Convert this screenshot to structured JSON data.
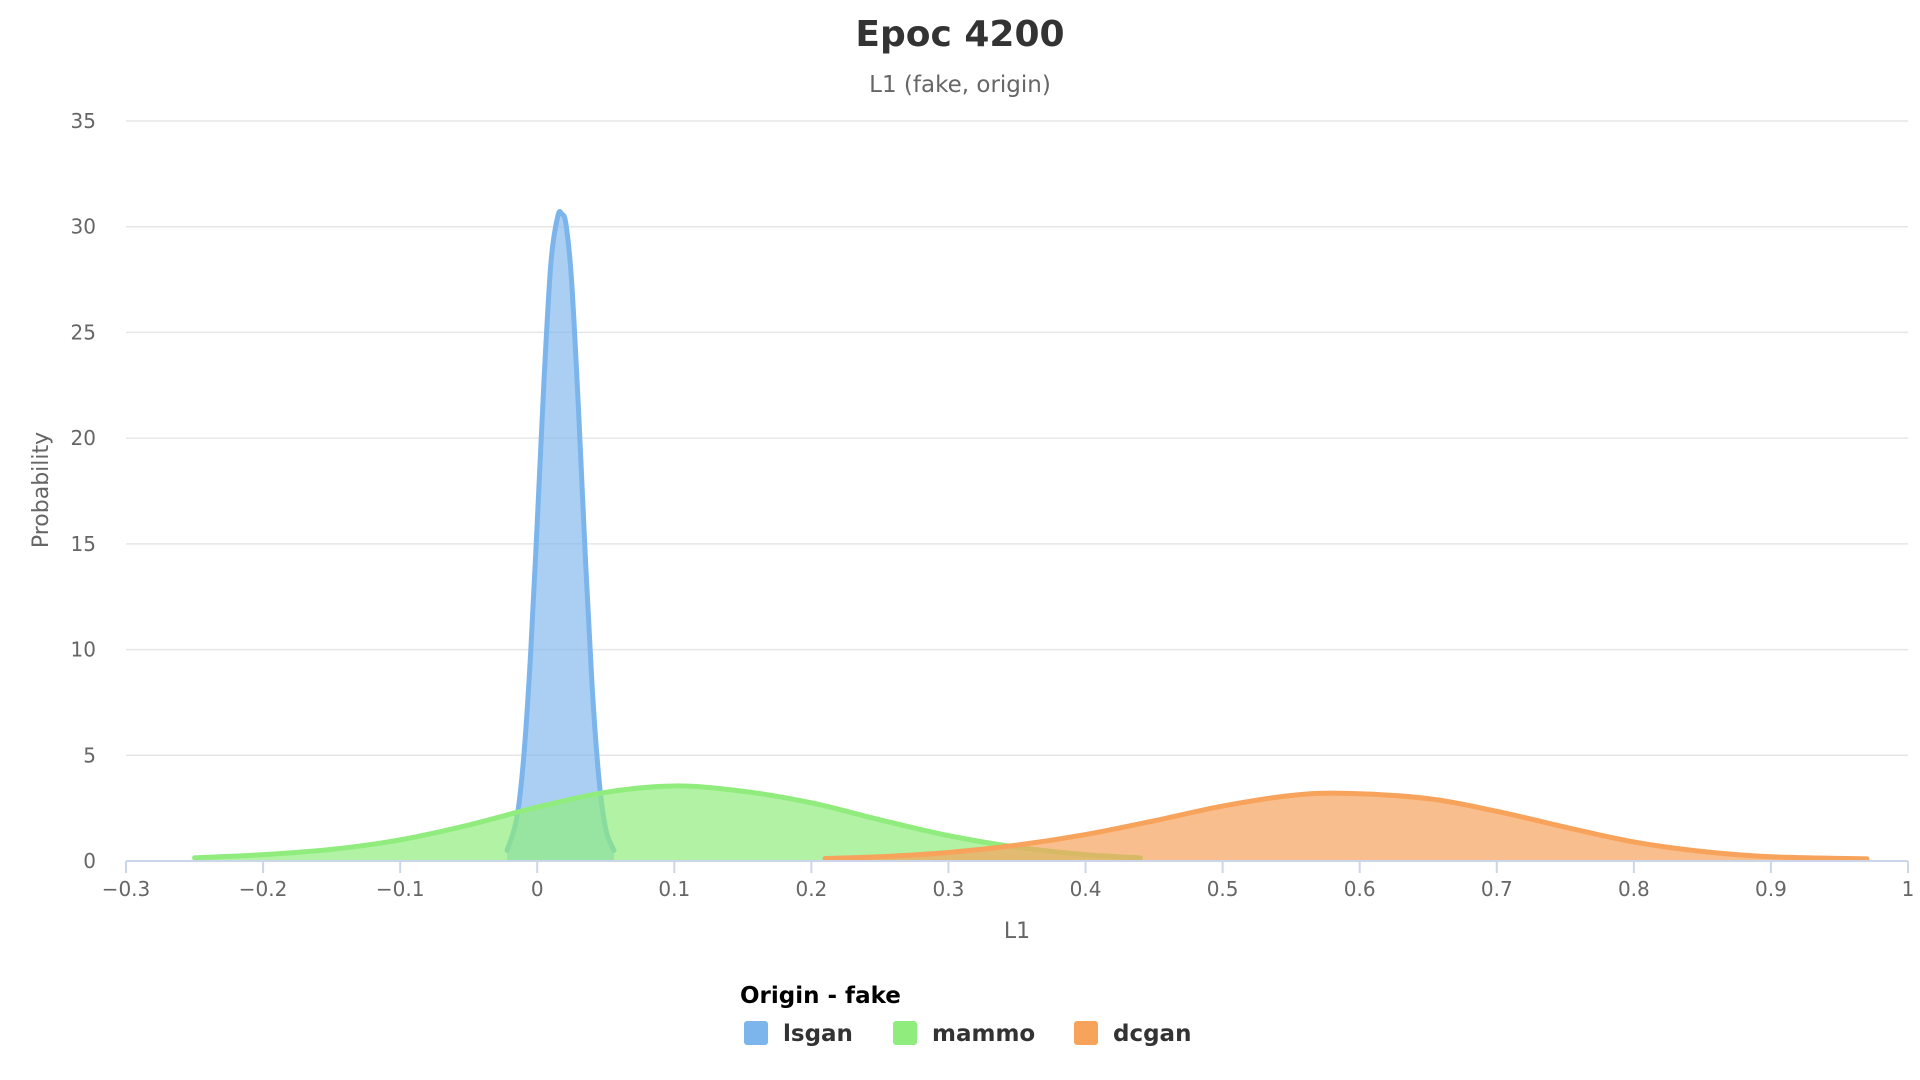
{
  "chart_data": {
    "type": "area",
    "title": "Epoc 4200",
    "subtitle": "L1 (fake, origin)",
    "xlabel": "L1",
    "ylabel": "Probability",
    "xlim": [
      -0.3,
      1
    ],
    "ylim": [
      0,
      35
    ],
    "x_ticks": [
      "−0.3",
      "−0.2",
      "−0.1",
      "0",
      "0.1",
      "0.2",
      "0.3",
      "0.4",
      "0.5",
      "0.6",
      "0.7",
      "0.8",
      "0.9",
      "1"
    ],
    "x_tick_values": [
      -0.3,
      -0.2,
      -0.1,
      0,
      0.1,
      0.2,
      0.3,
      0.4,
      0.5,
      0.6,
      0.7,
      0.8,
      0.9,
      1
    ],
    "y_ticks": [
      "0",
      "5",
      "10",
      "15",
      "20",
      "25",
      "30",
      "35"
    ],
    "y_tick_values": [
      0,
      5,
      10,
      15,
      20,
      25,
      30,
      35
    ],
    "grid": true,
    "legend_position": "bottom-center",
    "legend_title": "Origin - fake",
    "series": [
      {
        "name": "lsgan",
        "color": "#7cb5ec",
        "fill_opacity": 0.65,
        "x": [
          -0.022,
          -0.015,
          -0.01,
          -0.005,
          0.0,
          0.005,
          0.01,
          0.015,
          0.018,
          0.021,
          0.025,
          0.03,
          0.035,
          0.04,
          0.045,
          0.05,
          0.056
        ],
        "y": [
          0.5,
          2.0,
          4.8,
          9.6,
          16.0,
          22.8,
          28.3,
          30.5,
          30.6,
          30.1,
          27.5,
          21.5,
          14.5,
          8.3,
          3.9,
          1.5,
          0.5
        ]
      },
      {
        "name": "mammo",
        "color": "#90ed7d",
        "fill_opacity": 0.7,
        "x": [
          -0.25,
          -0.2,
          -0.15,
          -0.1,
          -0.05,
          0.0,
          0.05,
          0.1,
          0.15,
          0.2,
          0.25,
          0.3,
          0.35,
          0.4,
          0.44
        ],
        "y": [
          0.15,
          0.3,
          0.55,
          1.0,
          1.7,
          2.55,
          3.25,
          3.55,
          3.3,
          2.75,
          1.95,
          1.2,
          0.65,
          0.3,
          0.15
        ]
      },
      {
        "name": "dcgan",
        "color": "#f7a35c",
        "fill_opacity": 0.7,
        "x": [
          0.21,
          0.25,
          0.3,
          0.35,
          0.4,
          0.45,
          0.5,
          0.55,
          0.59,
          0.65,
          0.7,
          0.75,
          0.8,
          0.85,
          0.9,
          0.97
        ],
        "y": [
          0.12,
          0.2,
          0.4,
          0.75,
          1.25,
          1.9,
          2.6,
          3.1,
          3.2,
          2.95,
          2.35,
          1.6,
          0.9,
          0.45,
          0.2,
          0.1
        ]
      }
    ]
  }
}
